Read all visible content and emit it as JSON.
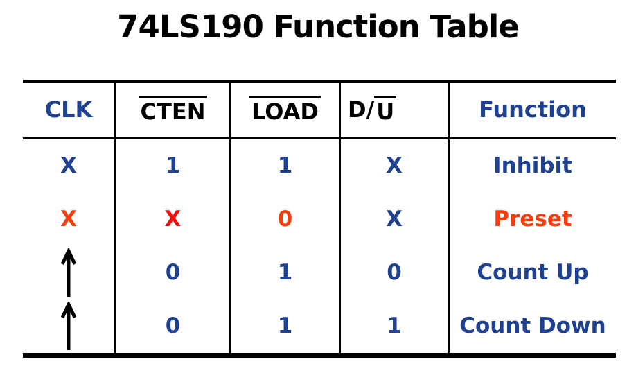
{
  "title": "74LS190 Function Table",
  "palette": {
    "blue": "#1e4191",
    "red": "#ee0f0f",
    "orange_red": "#f63d0e",
    "black": "#000000",
    "background": "#ffffff",
    "rule": "#000000"
  },
  "table": {
    "columns": [
      {
        "id": "clk",
        "label": "CLK",
        "color": "blue",
        "overline": "none"
      },
      {
        "id": "cten",
        "label": "CTEN",
        "color": "black",
        "overline": "full"
      },
      {
        "id": "load",
        "label": "LOAD",
        "color": "black",
        "overline": "full"
      },
      {
        "id": "du",
        "label": "D/U",
        "color": "black",
        "overline": "partial",
        "parts": [
          {
            "text": "D/",
            "overline": false
          },
          {
            "text": "U",
            "overline": true
          }
        ]
      },
      {
        "id": "function",
        "label": "Function",
        "color": "blue",
        "overline": "none"
      }
    ],
    "rows": [
      {
        "cells": [
          {
            "text": "X",
            "color": "blue",
            "kind": "text"
          },
          {
            "text": "1",
            "color": "blue",
            "kind": "text"
          },
          {
            "text": "1",
            "color": "blue",
            "kind": "text"
          },
          {
            "text": "X",
            "color": "blue",
            "kind": "text"
          },
          {
            "text": "Inhibit",
            "color": "blue",
            "kind": "text"
          }
        ]
      },
      {
        "cells": [
          {
            "text": "X",
            "color": "orange_red",
            "kind": "text"
          },
          {
            "text": "X",
            "color": "red",
            "kind": "text"
          },
          {
            "text": "0",
            "color": "orange_red",
            "kind": "text"
          },
          {
            "text": "X",
            "color": "blue",
            "kind": "text"
          },
          {
            "text": "Preset",
            "color": "orange_red",
            "kind": "text"
          }
        ]
      },
      {
        "cells": [
          {
            "text": "↑",
            "color": "black",
            "kind": "arrow"
          },
          {
            "text": "0",
            "color": "blue",
            "kind": "text"
          },
          {
            "text": "1",
            "color": "blue",
            "kind": "text"
          },
          {
            "text": "0",
            "color": "blue",
            "kind": "text"
          },
          {
            "text": "Count Up",
            "color": "blue",
            "kind": "text"
          }
        ]
      },
      {
        "cells": [
          {
            "text": "↑",
            "color": "black",
            "kind": "arrow"
          },
          {
            "text": "0",
            "color": "blue",
            "kind": "text"
          },
          {
            "text": "1",
            "color": "blue",
            "kind": "text"
          },
          {
            "text": "1",
            "color": "blue",
            "kind": "text"
          },
          {
            "text": "Count Down",
            "color": "blue",
            "kind": "text"
          }
        ]
      }
    ]
  },
  "chart_data": {
    "type": "table",
    "title": "74LS190 Function Table",
    "columns": [
      "CLK",
      "CTEN",
      "LOAD",
      "D/U",
      "Function"
    ],
    "column_overlines": [
      "none",
      "full",
      "full",
      "U-only",
      "none"
    ],
    "rows": [
      [
        "X",
        "1",
        "1",
        "X",
        "Inhibit"
      ],
      [
        "X",
        "X",
        "0",
        "X",
        "Preset"
      ],
      [
        "↑",
        "0",
        "1",
        "0",
        "Count Up"
      ],
      [
        "↑",
        "0",
        "1",
        "1",
        "Count Down"
      ]
    ],
    "layout_hints": {
      "thick_top_and_bottom_rules": true,
      "no_outer_side_borders": true,
      "header_text_colors": [
        "blue",
        "black",
        "black",
        "black",
        "blue"
      ]
    }
  }
}
